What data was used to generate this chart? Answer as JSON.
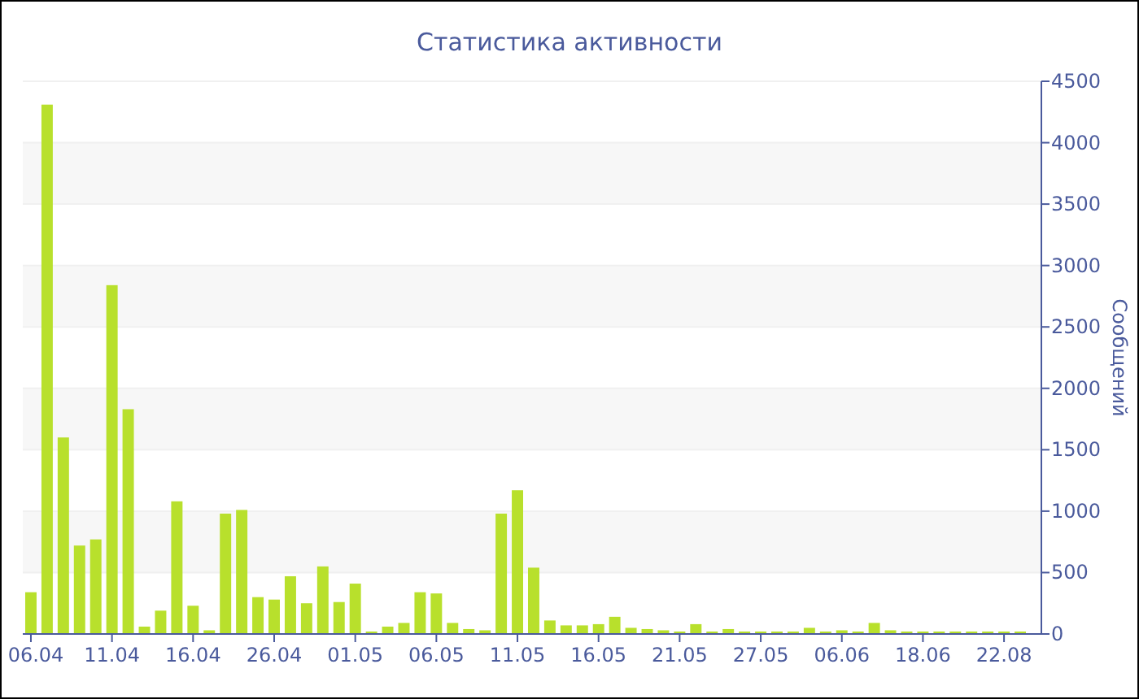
{
  "chart_data": {
    "type": "bar",
    "title": "Статистика активности",
    "ylabel": "Сообщений",
    "categories": [
      "06.04",
      null,
      null,
      null,
      null,
      "11.04",
      null,
      null,
      null,
      null,
      "16.04",
      null,
      null,
      null,
      null,
      "26.04",
      null,
      null,
      null,
      null,
      "01.05",
      null,
      null,
      null,
      null,
      "06.05",
      null,
      null,
      null,
      null,
      "11.05",
      null,
      null,
      null,
      null,
      "16.05",
      null,
      null,
      null,
      null,
      "21.05",
      null,
      null,
      null,
      null,
      "27.05",
      null,
      null,
      null,
      null,
      "06.06",
      null,
      null,
      null,
      null,
      "18.06",
      null,
      null,
      null,
      null,
      "22.08",
      null
    ],
    "values": [
      340,
      4310,
      1600,
      720,
      770,
      2840,
      1830,
      60,
      190,
      1080,
      230,
      30,
      980,
      1010,
      300,
      280,
      470,
      250,
      550,
      260,
      410,
      20,
      60,
      90,
      340,
      330,
      90,
      40,
      30,
      980,
      1170,
      540,
      110,
      70,
      70,
      80,
      140,
      50,
      40,
      30,
      20,
      80,
      20,
      40,
      20,
      20,
      20,
      20,
      50,
      20,
      30,
      20,
      90,
      30,
      20,
      20,
      20,
      20,
      20,
      20,
      20,
      20
    ],
    "color": "#b8e02c",
    "ylim": [
      0,
      4500
    ],
    "yticks": [
      0,
      500,
      1000,
      1500,
      2000,
      2500,
      3000,
      3500,
      4000,
      4500
    ],
    "grid": "y"
  }
}
